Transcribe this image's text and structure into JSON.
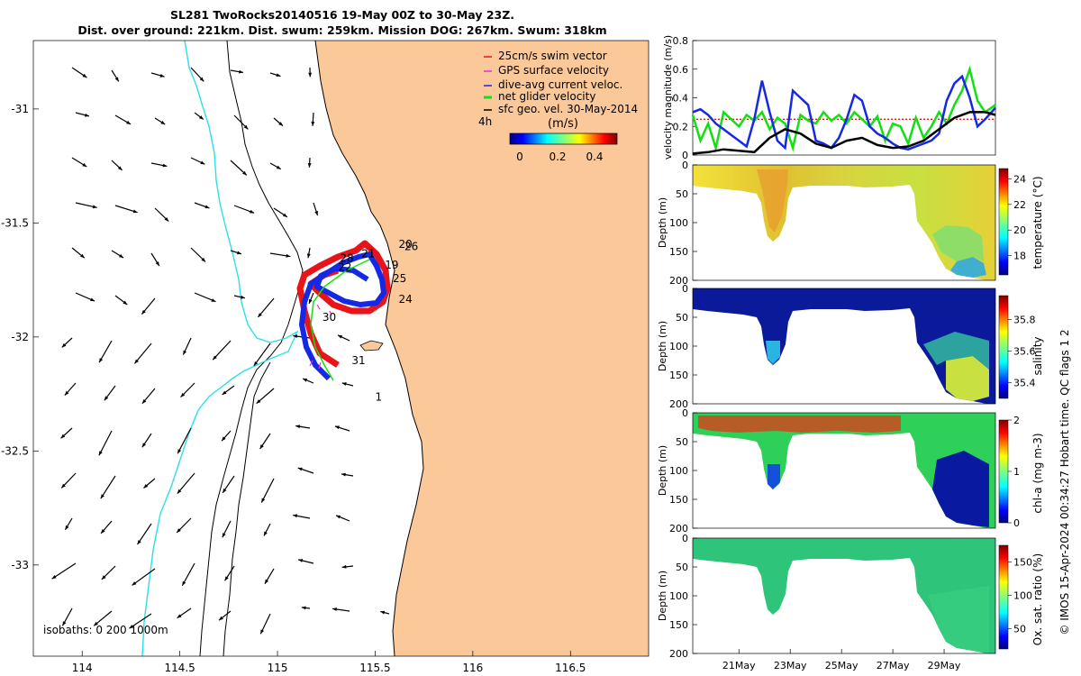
{
  "header": {
    "line1": "SL281 TwoRocks20140516 19-May 00Z to 30-May 23Z.",
    "line2": "Dist. over ground: 221km. Dist. swum: 259km. Mission DOG: 267km. Swum: 318km"
  },
  "credit": "© IMOS 15-Apr-2024 00:34:27 Hobart time. QC flags 1  2",
  "map": {
    "xticks": [
      "114",
      "114.5",
      "115",
      "115.5",
      "116",
      "116.5"
    ],
    "yticks": [
      "-31",
      "-31.5",
      "-32",
      "-32.5",
      "-33"
    ],
    "xlim": [
      113.75,
      116.9
    ],
    "ylim": [
      -33.4,
      -30.7
    ],
    "isobaths_label": "isobaths: 0   200  1000m",
    "legend": [
      {
        "label": "25cm/s swim vector",
        "color": "#e8141a"
      },
      {
        "label": "GPS surface velocity",
        "color": "#e030e0"
      },
      {
        "label": "dive-avg current veloc.",
        "color": "#1428e6"
      },
      {
        "label": "net glider velocity",
        "color": "#11e011"
      },
      {
        "label": "sfc geo. vel. 30-May-2014",
        "color": "#000000"
      }
    ],
    "colorbar": {
      "label": "(m/s)",
      "ticks": [
        "0",
        "0.2",
        "0.4"
      ],
      "interval_label": "4h"
    },
    "day_labels": [
      {
        "text": "20",
        "lon": 115.62,
        "lat": -31.61
      },
      {
        "text": "26",
        "lon": 115.65,
        "lat": -31.62
      },
      {
        "text": "21",
        "lon": 115.43,
        "lat": -31.65
      },
      {
        "text": "28",
        "lon": 115.32,
        "lat": -31.67
      },
      {
        "text": "22",
        "lon": 115.31,
        "lat": -31.71
      },
      {
        "text": "19",
        "lon": 115.55,
        "lat": -31.7
      },
      {
        "text": "25",
        "lon": 115.59,
        "lat": -31.76
      },
      {
        "text": "24",
        "lon": 115.62,
        "lat": -31.85
      },
      {
        "text": "30",
        "lon": 115.23,
        "lat": -31.93
      },
      {
        "text": "31",
        "lon": 115.38,
        "lat": -32.12
      },
      {
        "text": "1",
        "lon": 115.5,
        "lat": -32.28
      }
    ]
  },
  "chart_data": [
    {
      "type": "line",
      "name": "velocity-timeseries",
      "ylabel": "velocity magnitude (m/s)",
      "yticks": [
        "0",
        "0.2",
        "0.4",
        "0.6",
        "0.8"
      ],
      "ylim": [
        0,
        0.8
      ],
      "xlim": [
        19.2,
        31.0
      ],
      "series": [
        {
          "name": "swim speed",
          "color": "#e8141a",
          "style": "dotted",
          "x": [
            19.2,
            31.0
          ],
          "y": [
            0.25,
            0.25
          ]
        },
        {
          "name": "net glider velocity",
          "color": "#11e011",
          "x": [
            19.2,
            19.5,
            19.8,
            20.1,
            20.4,
            20.7,
            21.0,
            21.3,
            21.6,
            21.9,
            22.2,
            22.5,
            22.8,
            23.1,
            23.4,
            23.7,
            24.0,
            24.3,
            24.6,
            24.9,
            25.2,
            25.5,
            25.8,
            26.1,
            26.4,
            26.7,
            27.0,
            27.3,
            27.6,
            27.9,
            28.2,
            28.5,
            28.8,
            29.1,
            29.4,
            29.7,
            30.0,
            30.3,
            30.6,
            31.0
          ],
          "y": [
            0.28,
            0.1,
            0.22,
            0.05,
            0.3,
            0.25,
            0.2,
            0.28,
            0.24,
            0.3,
            0.18,
            0.26,
            0.22,
            0.05,
            0.28,
            0.24,
            0.22,
            0.3,
            0.24,
            0.28,
            0.22,
            0.3,
            0.25,
            0.2,
            0.27,
            0.1,
            0.22,
            0.2,
            0.08,
            0.26,
            0.12,
            0.2,
            0.3,
            0.22,
            0.35,
            0.45,
            0.6,
            0.38,
            0.3,
            0.35
          ]
        },
        {
          "name": "dive-avg current",
          "color": "#1428e6",
          "x": [
            19.2,
            19.5,
            19.8,
            20.1,
            20.4,
            20.7,
            21.0,
            21.3,
            21.6,
            21.9,
            22.2,
            22.5,
            22.8,
            23.1,
            23.4,
            23.7,
            24.0,
            24.3,
            24.6,
            24.9,
            25.2,
            25.5,
            25.8,
            26.1,
            26.4,
            26.7,
            27.0,
            27.3,
            27.6,
            27.9,
            28.2,
            28.5,
            28.8,
            29.1,
            29.4,
            29.7,
            30.0,
            30.3,
            30.6,
            31.0
          ],
          "y": [
            0.3,
            0.32,
            0.28,
            0.22,
            0.18,
            0.14,
            0.1,
            0.06,
            0.25,
            0.52,
            0.3,
            0.1,
            0.05,
            0.45,
            0.4,
            0.35,
            0.1,
            0.08,
            0.05,
            0.12,
            0.25,
            0.42,
            0.38,
            0.2,
            0.15,
            0.12,
            0.08,
            0.05,
            0.04,
            0.06,
            0.08,
            0.1,
            0.15,
            0.38,
            0.5,
            0.55,
            0.4,
            0.2,
            0.25,
            0.33
          ]
        },
        {
          "name": "sfc geo. vel.",
          "color": "#000000",
          "x": [
            19.2,
            19.8,
            20.4,
            21.0,
            21.6,
            22.2,
            22.8,
            23.4,
            24.0,
            24.6,
            25.2,
            25.8,
            26.4,
            27.0,
            27.6,
            28.2,
            28.8,
            29.4,
            30.0,
            30.6,
            31.0
          ],
          "y": [
            0.01,
            0.02,
            0.04,
            0.03,
            0.02,
            0.12,
            0.18,
            0.15,
            0.08,
            0.05,
            0.1,
            0.12,
            0.07,
            0.05,
            0.06,
            0.1,
            0.18,
            0.26,
            0.3,
            0.3,
            0.28
          ]
        }
      ]
    },
    {
      "type": "heatmap",
      "name": "temperature-section",
      "ylabel": "Depth (m)",
      "clabel": "temperature (°C)",
      "yticks": [
        "0",
        "50",
        "100",
        "150",
        "200"
      ],
      "cticks": [
        "18",
        "20",
        "22",
        "24"
      ],
      "clim": [
        16.5,
        24.8
      ],
      "colormap": "jet"
    },
    {
      "type": "heatmap",
      "name": "salinity-section",
      "ylabel": "Depth (m)",
      "clabel": "salinity",
      "yticks": [
        "0",
        "50",
        "100",
        "150",
        "200"
      ],
      "cticks": [
        "35.4",
        "35.6",
        "35.8"
      ],
      "clim": [
        35.3,
        35.95
      ],
      "colormap": "jet"
    },
    {
      "type": "heatmap",
      "name": "chla-section",
      "ylabel": "Depth (m)",
      "clabel": "chl-a (mg m-3)",
      "yticks": [
        "0",
        "50",
        "100",
        "150",
        "200"
      ],
      "cticks": [
        "0",
        "1",
        "2"
      ],
      "clim": [
        0,
        2
      ],
      "colormap": "jet"
    },
    {
      "type": "heatmap",
      "name": "oxygen-section",
      "ylabel": "Depth (m)",
      "clabel": "Ox. sat. ratio (%)",
      "yticks": [
        "0",
        "50",
        "100",
        "150",
        "200"
      ],
      "cticks": [
        "50",
        "100",
        "150"
      ],
      "clim": [
        20,
        175
      ],
      "colormap": "jet"
    },
    {
      "type": "axis",
      "name": "time-axis",
      "xticks": [
        "21May",
        "23May",
        "25May",
        "27May",
        "29May"
      ],
      "xtick_days": [
        21,
        23,
        25,
        27,
        29
      ],
      "xlim": [
        19.2,
        31.0
      ]
    }
  ]
}
